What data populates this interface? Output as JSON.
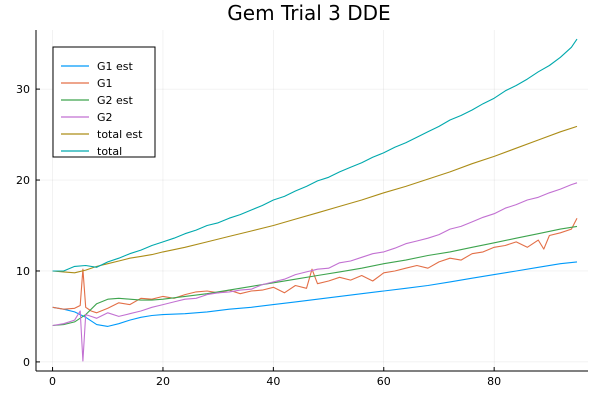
{
  "chart_data": {
    "type": "line",
    "title": "Gem Trial 3 DDE",
    "xlabel": "",
    "ylabel": "",
    "xlim": [
      -3,
      97
    ],
    "ylim": [
      -1,
      36.5
    ],
    "xticks": [
      0,
      20,
      40,
      60,
      80
    ],
    "yticks": [
      0,
      10,
      20,
      30
    ],
    "grid": true,
    "legend_position": "top-left",
    "series": [
      {
        "name": "G1 est",
        "color": "#009AFA",
        "x": [
          0,
          2,
          4,
          6,
          8,
          10,
          12,
          14,
          16,
          18,
          20,
          24,
          28,
          32,
          36,
          40,
          44,
          48,
          52,
          56,
          60,
          64,
          68,
          72,
          76,
          80,
          84,
          88,
          92,
          95
        ],
        "y": [
          6.0,
          5.8,
          5.5,
          4.9,
          4.1,
          3.9,
          4.2,
          4.6,
          4.9,
          5.1,
          5.2,
          5.3,
          5.5,
          5.8,
          6.0,
          6.3,
          6.6,
          6.9,
          7.2,
          7.5,
          7.8,
          8.1,
          8.4,
          8.8,
          9.2,
          9.6,
          10.0,
          10.4,
          10.8,
          11.0
        ]
      },
      {
        "name": "G1",
        "color": "#E36F47",
        "x": [
          0,
          2,
          4,
          5,
          5.5,
          6,
          7,
          8,
          10,
          12,
          14,
          16,
          18,
          20,
          22,
          24,
          26,
          28,
          30,
          32,
          34,
          36,
          38,
          40,
          42,
          44,
          46,
          47,
          48,
          50,
          52,
          54,
          56,
          58,
          60,
          62,
          64,
          66,
          68,
          70,
          72,
          74,
          76,
          78,
          80,
          82,
          84,
          86,
          88,
          89,
          90,
          92,
          94,
          95
        ],
        "y": [
          6.0,
          5.8,
          5.9,
          6.2,
          10.2,
          6.0,
          5.6,
          5.4,
          5.9,
          6.5,
          6.3,
          7.0,
          6.9,
          7.2,
          7.0,
          7.4,
          7.7,
          7.8,
          7.6,
          7.9,
          7.5,
          7.8,
          7.9,
          8.2,
          7.6,
          8.4,
          8.1,
          10.2,
          8.6,
          8.9,
          9.3,
          9.0,
          9.5,
          8.9,
          9.8,
          10.0,
          10.3,
          10.6,
          10.3,
          11.0,
          11.4,
          11.2,
          11.9,
          12.1,
          12.6,
          12.8,
          13.2,
          12.6,
          13.4,
          12.4,
          13.9,
          14.2,
          14.6,
          15.8
        ]
      },
      {
        "name": "G2 est",
        "color": "#3EA44E",
        "x": [
          0,
          2,
          4,
          6,
          8,
          10,
          12,
          14,
          16,
          18,
          20,
          24,
          28,
          32,
          36,
          40,
          44,
          48,
          52,
          56,
          60,
          64,
          68,
          72,
          76,
          80,
          84,
          88,
          92,
          95
        ],
        "y": [
          4.0,
          4.1,
          4.4,
          5.2,
          6.4,
          6.9,
          7.0,
          6.9,
          6.8,
          6.8,
          6.9,
          7.2,
          7.5,
          7.9,
          8.3,
          8.7,
          9.1,
          9.5,
          9.9,
          10.3,
          10.8,
          11.2,
          11.7,
          12.1,
          12.6,
          13.1,
          13.6,
          14.1,
          14.6,
          14.9
        ]
      },
      {
        "name": "G2",
        "color": "#C271D2",
        "x": [
          0,
          2,
          4,
          5,
          5.5,
          6,
          7,
          8,
          10,
          12,
          14,
          16,
          18,
          20,
          22,
          24,
          26,
          28,
          30,
          32,
          34,
          36,
          38,
          40,
          42,
          44,
          46,
          48,
          50,
          52,
          54,
          56,
          58,
          60,
          62,
          64,
          66,
          68,
          70,
          72,
          74,
          76,
          78,
          80,
          82,
          84,
          86,
          88,
          90,
          92,
          94,
          95
        ],
        "y": [
          4.0,
          4.2,
          4.6,
          5.6,
          0.1,
          5.2,
          5.0,
          4.8,
          5.4,
          5.0,
          5.3,
          5.6,
          6.0,
          6.3,
          6.6,
          6.9,
          7.0,
          7.4,
          7.6,
          7.7,
          7.9,
          8.0,
          8.5,
          8.8,
          9.1,
          9.6,
          9.9,
          10.2,
          10.3,
          10.9,
          11.1,
          11.5,
          11.9,
          12.1,
          12.5,
          13.0,
          13.3,
          13.6,
          14.0,
          14.6,
          14.9,
          15.4,
          15.9,
          16.3,
          16.9,
          17.3,
          17.8,
          18.1,
          18.6,
          19.0,
          19.5,
          19.7
        ]
      },
      {
        "name": "total est",
        "color": "#AC8D18",
        "x": [
          0,
          2,
          4,
          6,
          8,
          10,
          12,
          14,
          16,
          18,
          20,
          24,
          28,
          32,
          36,
          40,
          44,
          48,
          52,
          56,
          60,
          64,
          68,
          72,
          76,
          80,
          84,
          88,
          92,
          95
        ],
        "y": [
          10.0,
          9.9,
          9.8,
          10.1,
          10.5,
          10.8,
          11.1,
          11.4,
          11.6,
          11.8,
          12.1,
          12.6,
          13.2,
          13.8,
          14.4,
          15.0,
          15.7,
          16.4,
          17.1,
          17.8,
          18.6,
          19.3,
          20.1,
          20.9,
          21.8,
          22.6,
          23.5,
          24.4,
          25.3,
          25.9
        ]
      },
      {
        "name": "total",
        "color": "#00A9AD",
        "x": [
          0,
          2,
          4,
          6,
          8,
          10,
          12,
          14,
          16,
          18,
          20,
          22,
          24,
          26,
          28,
          30,
          32,
          34,
          36,
          38,
          40,
          42,
          44,
          46,
          48,
          50,
          52,
          54,
          56,
          58,
          60,
          62,
          64,
          66,
          68,
          70,
          72,
          74,
          76,
          78,
          80,
          82,
          84,
          86,
          88,
          90,
          92,
          94,
          95
        ],
        "y": [
          10.0,
          10.0,
          10.5,
          10.6,
          10.4,
          11.0,
          11.4,
          11.9,
          12.3,
          12.8,
          13.2,
          13.6,
          14.1,
          14.5,
          15.0,
          15.3,
          15.8,
          16.2,
          16.7,
          17.2,
          17.8,
          18.2,
          18.8,
          19.3,
          19.9,
          20.3,
          20.9,
          21.4,
          21.9,
          22.5,
          23.0,
          23.6,
          24.1,
          24.7,
          25.3,
          25.9,
          26.6,
          27.1,
          27.7,
          28.4,
          29.0,
          29.8,
          30.4,
          31.1,
          31.9,
          32.6,
          33.5,
          34.6,
          35.5
        ]
      }
    ]
  }
}
